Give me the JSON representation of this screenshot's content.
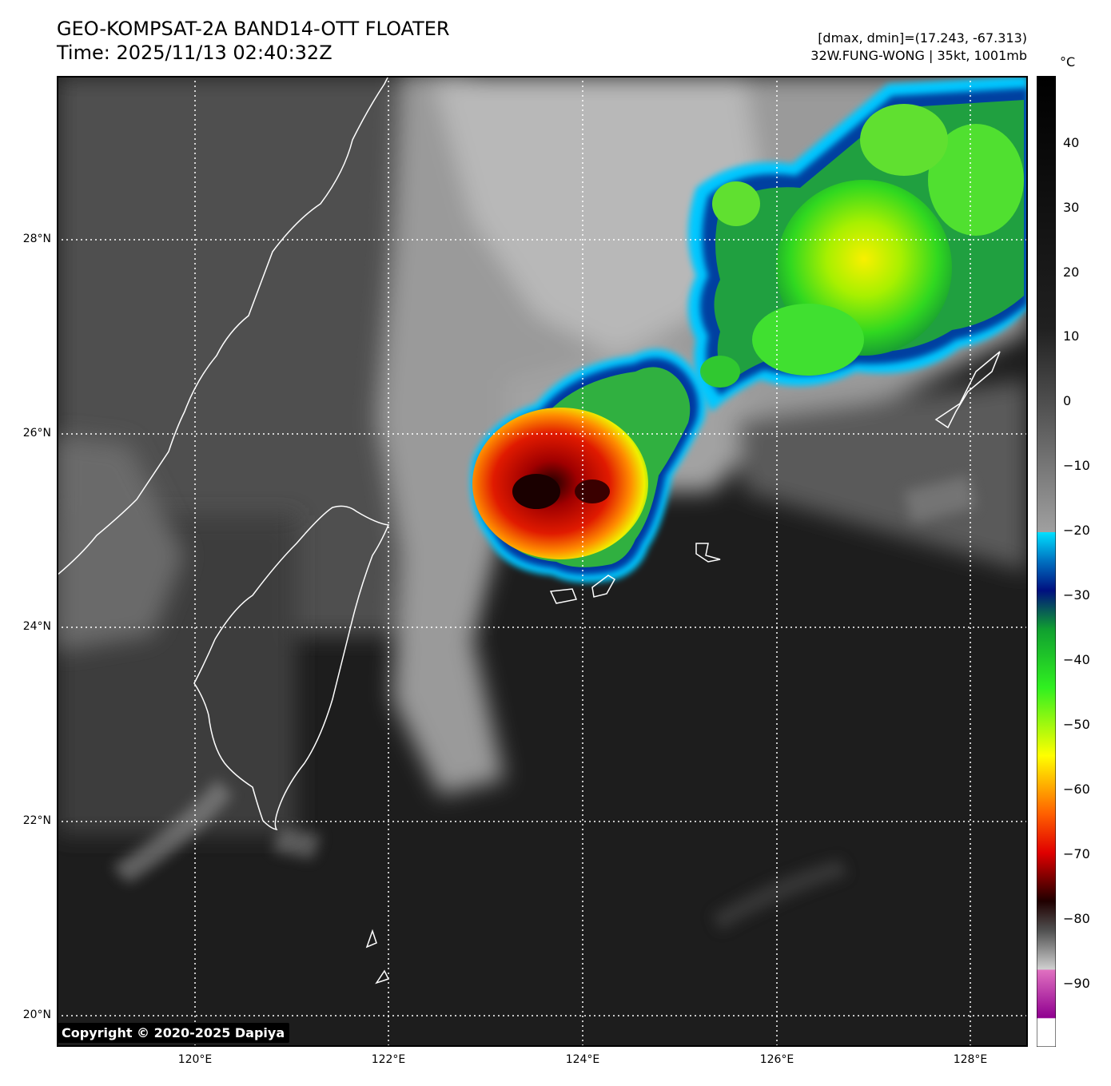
{
  "title_line1": "GEO-KOMPSAT-2A BAND14-OTT FLOATER",
  "title_line2": "Time: 2025/11/13 02:40:32Z",
  "info_line1": "[dmax, dmin]=(17.243, -67.313)",
  "info_line2": "32W.FUNG-WONG | 35kt, 1001mb",
  "copyright": "Copyright © 2020-2025 Dapiya",
  "colorbar": {
    "unit": "°C",
    "ticks": [
      "40",
      "30",
      "20",
      "10",
      "0",
      "−10",
      "−20",
      "−30",
      "−40",
      "−50",
      "−60",
      "−70",
      "−80",
      "−90"
    ]
  },
  "axes": {
    "lat_labels": [
      "28°N",
      "26°N",
      "24°N",
      "22°N",
      "20°N"
    ],
    "lon_labels": [
      "120°E",
      "122°E",
      "124°E",
      "126°E",
      "128°E"
    ]
  },
  "colors": {
    "background_ocean": "#1c1c1c",
    "cloud_gray": "#a8a8a8",
    "cold_top_red": "#e01000",
    "cold_top_green": "#30e020",
    "coastline": "#ffffff"
  }
}
